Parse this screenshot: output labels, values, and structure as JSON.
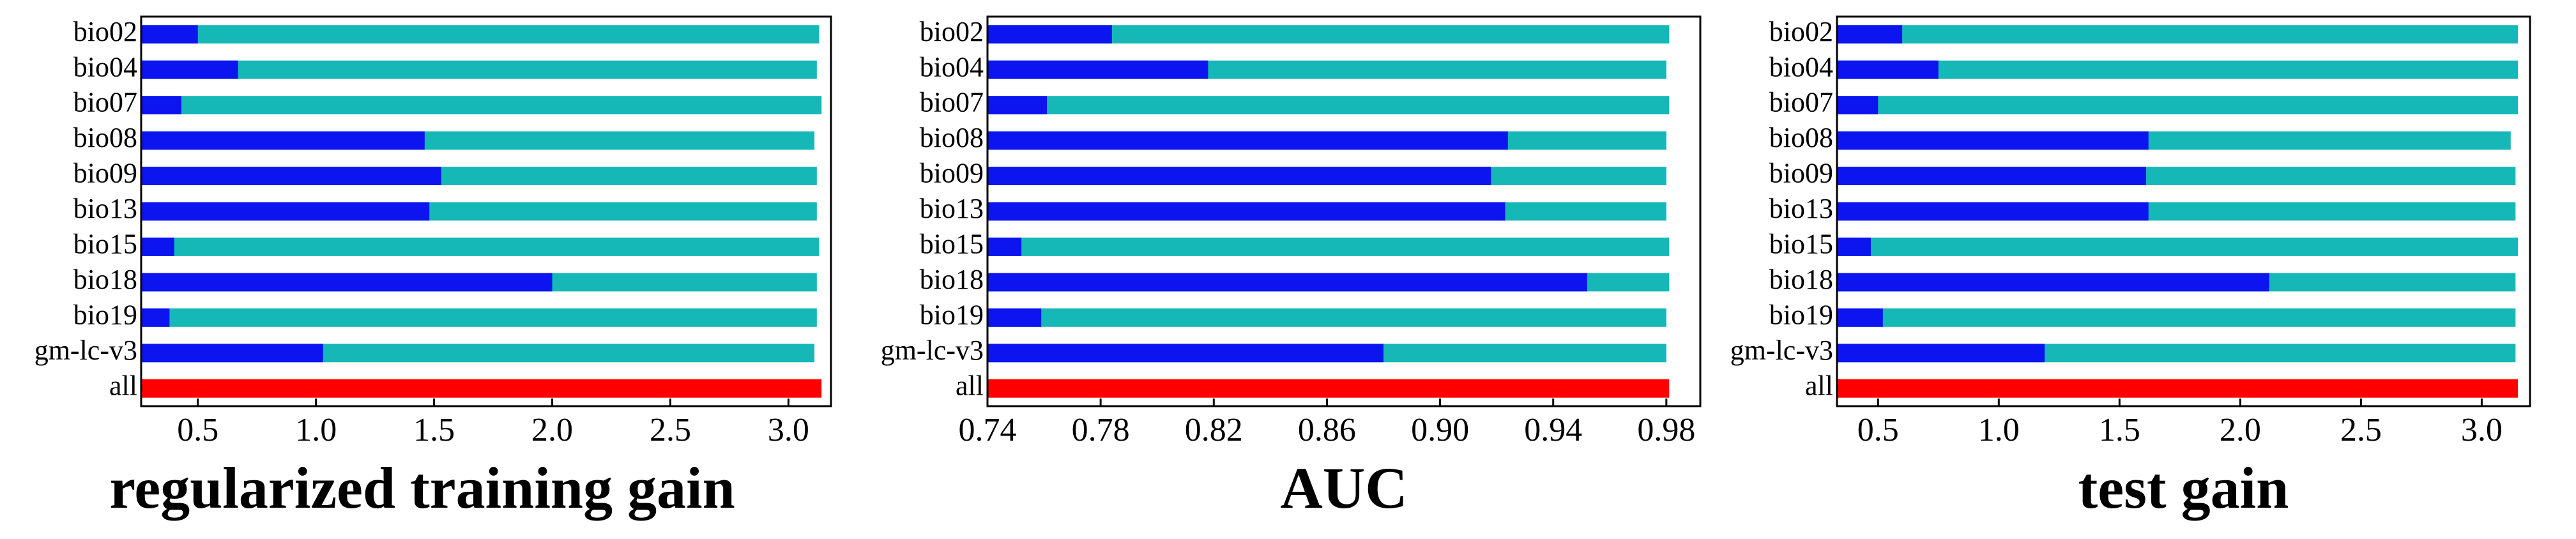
{
  "chart_data": [
    {
      "type": "bar",
      "orientation": "horizontal",
      "title": "regularized training gain",
      "categories": [
        "bio02",
        "bio04",
        "bio07",
        "bio08",
        "bio09",
        "bio13",
        "bio15",
        "bio18",
        "bio19",
        "gm-lc-v3",
        "all"
      ],
      "series": [
        {
          "color": "#16b7b7",
          "values": [
            3.13,
            3.12,
            3.14,
            3.11,
            3.12,
            3.12,
            3.13,
            3.12,
            3.12,
            3.11,
            null
          ]
        },
        {
          "color": "#0c14f0",
          "values": [
            0.5,
            0.67,
            0.43,
            1.46,
            1.53,
            1.48,
            0.4,
            2.0,
            0.38,
            1.03,
            null
          ]
        },
        {
          "color": "#ff0000",
          "values": [
            null,
            null,
            null,
            null,
            null,
            null,
            null,
            null,
            null,
            null,
            3.14
          ]
        }
      ],
      "xlim": [
        0.26,
        3.18
      ],
      "xticks": [
        0.5,
        {
          "value": 1,
          "label": "1.0"
        },
        1.5,
        {
          "value": 2,
          "label": "2.0"
        },
        2.5,
        {
          "value": 3,
          "label": "3.0"
        }
      ]
    },
    {
      "type": "bar",
      "orientation": "horizontal",
      "title": "AUC",
      "categories": [
        "bio02",
        "bio04",
        "bio07",
        "bio08",
        "bio09",
        "bio13",
        "bio15",
        "bio18",
        "bio19",
        "gm-lc-v3",
        "all"
      ],
      "series": [
        {
          "color": "#16b7b7",
          "values": [
            0.981,
            0.98,
            0.981,
            0.98,
            0.98,
            0.98,
            0.981,
            0.981,
            0.98,
            0.98,
            null
          ]
        },
        {
          "color": "#0c14f0",
          "values": [
            0.784,
            0.818,
            0.761,
            0.924,
            0.918,
            0.923,
            0.752,
            0.952,
            0.759,
            0.88,
            null
          ]
        },
        {
          "color": "#ff0000",
          "values": [
            null,
            null,
            null,
            null,
            null,
            null,
            null,
            null,
            null,
            null,
            0.981
          ]
        }
      ],
      "xlim": [
        0.74,
        0.992
      ],
      "xticks": [
        0.74,
        0.78,
        0.82,
        0.86,
        {
          "value": 0.9,
          "label": "0.90"
        },
        0.94,
        0.98
      ]
    },
    {
      "type": "bar",
      "orientation": "horizontal",
      "title": "test gain",
      "categories": [
        "bio02",
        "bio04",
        "bio07",
        "bio08",
        "bio09",
        "bio13",
        "bio15",
        "bio18",
        "bio19",
        "gm-lc-v3",
        "all"
      ],
      "series": [
        {
          "color": "#16b7b7",
          "values": [
            3.15,
            3.15,
            3.15,
            3.12,
            3.14,
            3.14,
            3.15,
            3.14,
            3.14,
            3.14,
            null
          ]
        },
        {
          "color": "#0c14f0",
          "values": [
            0.6,
            0.75,
            0.5,
            1.62,
            1.61,
            1.62,
            0.47,
            2.12,
            0.52,
            1.19,
            null
          ]
        },
        {
          "color": "#ff0000",
          "values": [
            null,
            null,
            null,
            null,
            null,
            null,
            null,
            null,
            null,
            null,
            3.15
          ]
        }
      ],
      "xlim": [
        0.33,
        3.2
      ],
      "xticks": [
        0.5,
        {
          "value": 1,
          "label": "1.0"
        },
        1.5,
        {
          "value": 2,
          "label": "2.0"
        },
        2.5,
        {
          "value": 3,
          "label": "3.0"
        }
      ]
    }
  ]
}
